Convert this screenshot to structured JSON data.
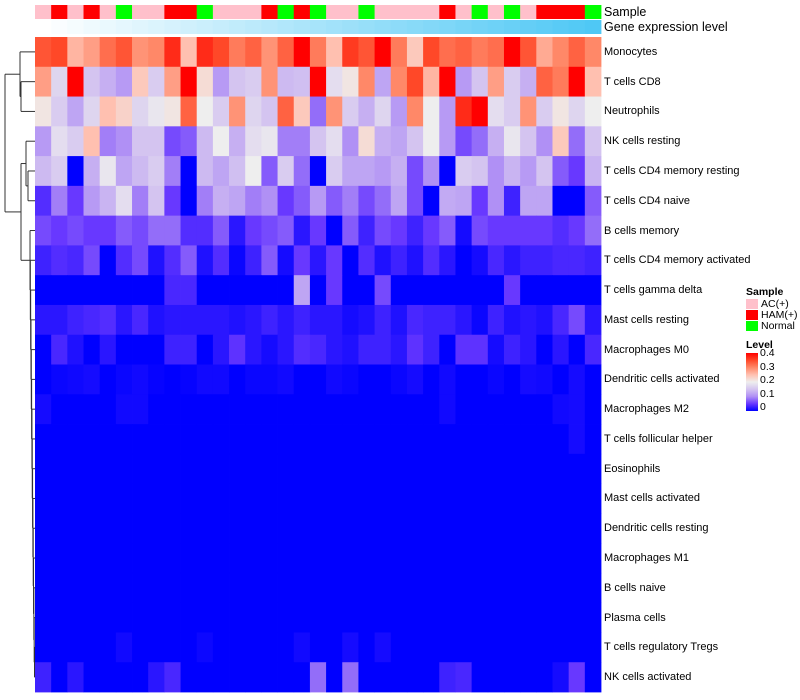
{
  "chart_data": {
    "type": "heatmap",
    "annotations": {
      "sample_label": "Sample",
      "gene_expression_label": "Gene expression level",
      "gene_expression_colors": [
        "#FFFFFF",
        "#4FC8F5"
      ]
    },
    "sample_groups": [
      "AC(+)",
      "HAM(+)",
      "AC(+)",
      "HAM(+)",
      "AC(+)",
      "Normal",
      "AC(+)",
      "AC(+)",
      "HAM(+)",
      "HAM(+)",
      "Normal",
      "AC(+)",
      "AC(+)",
      "AC(+)",
      "HAM(+)",
      "Normal",
      "HAM(+)",
      "Normal",
      "AC(+)",
      "AC(+)",
      "Normal",
      "AC(+)",
      "AC(+)",
      "AC(+)",
      "AC(+)",
      "HAM(+)",
      "AC(+)",
      "Normal",
      "AC(+)",
      "Normal",
      "AC(+)",
      "HAM(+)",
      "HAM(+)",
      "HAM(+)",
      "Normal"
    ],
    "rows": [
      "Monocytes",
      "T cells CD8",
      "Neutrophils",
      "NK cells resting",
      "T cells CD4 memory resting",
      "T cells CD4 naive",
      "B cells memory",
      "T cells CD4 memory activated",
      "T cells gamma delta",
      "Mast cells resting",
      "Macrophages M0",
      "Dendritic cells activated",
      "Macrophages M2",
      "T cells follicular helper",
      "Eosinophils",
      "Mast cells activated",
      "Dendritic cells resting",
      "Macrophages M1",
      "B cells naive",
      "Plasma cells",
      "T cells regulatory  Tregs",
      "NK cells activated"
    ],
    "values": [
      [
        0.34,
        0.35,
        0.26,
        0.28,
        0.32,
        0.34,
        0.29,
        0.3,
        0.37,
        0.25,
        0.37,
        0.35,
        0.31,
        0.33,
        0.29,
        0.33,
        0.4,
        0.31,
        0.25,
        0.36,
        0.34,
        0.4,
        0.31,
        0.24,
        0.35,
        0.32,
        0.33,
        0.31,
        0.32,
        0.4,
        0.34,
        0.27,
        0.3,
        0.33,
        0.3
      ],
      [
        0.28,
        0.17,
        0.4,
        0.15,
        0.13,
        0.11,
        0.24,
        0.16,
        0.28,
        0.4,
        0.22,
        0.11,
        0.15,
        0.16,
        0.29,
        0.14,
        0.145,
        0.4,
        0.18,
        0.21,
        0.3,
        0.12,
        0.3,
        0.35,
        0.26,
        0.4,
        0.11,
        0.15,
        0.28,
        0.16,
        0.13,
        0.33,
        0.31,
        0.4,
        0.25
      ],
      [
        0.21,
        0.16,
        0.12,
        0.17,
        0.25,
        0.23,
        0.17,
        0.19,
        0.21,
        0.33,
        0.2,
        0.16,
        0.29,
        0.17,
        0.15,
        0.33,
        0.24,
        0.08,
        0.29,
        0.16,
        0.13,
        0.17,
        0.11,
        0.3,
        0.2,
        0.11,
        0.37,
        0.4,
        0.18,
        0.16,
        0.29,
        0.16,
        0.21,
        0.17,
        0.2
      ],
      [
        0.11,
        0.18,
        0.16,
        0.25,
        0.09,
        0.1,
        0.15,
        0.15,
        0.06,
        0.07,
        0.14,
        0.2,
        0.13,
        0.18,
        0.19,
        0.09,
        0.09,
        0.15,
        0.18,
        0.1,
        0.22,
        0.13,
        0.12,
        0.15,
        0.2,
        0.11,
        0.06,
        0.08,
        0.13,
        0.19,
        0.15,
        0.1,
        0.24,
        0.08,
        0.15
      ],
      [
        0.14,
        0.16,
        0,
        0.13,
        0.19,
        0.12,
        0.14,
        0.16,
        0.09,
        0,
        0.14,
        0.12,
        0.145,
        0.2,
        0.07,
        0.16,
        0.08,
        0,
        0.16,
        0.12,
        0.12,
        0.11,
        0.13,
        0.06,
        0.1,
        0,
        0.16,
        0.15,
        0.1,
        0.135,
        0.11,
        0.15,
        0.07,
        0.05,
        0.135
      ],
      [
        0.04,
        0.09,
        0.05,
        0.11,
        0.135,
        0.18,
        0.09,
        0.15,
        0.05,
        0,
        0.09,
        0.13,
        0.12,
        0.09,
        0.1,
        0.05,
        0.07,
        0.11,
        0.07,
        0.09,
        0.06,
        0.08,
        0.12,
        0.06,
        0,
        0.125,
        0.12,
        0.05,
        0.1,
        0.03,
        0.12,
        0.12,
        0,
        0,
        0.07
      ],
      [
        0.06,
        0.05,
        0.06,
        0.05,
        0.05,
        0.07,
        0.06,
        0.08,
        0.08,
        0.04,
        0.04,
        0.07,
        0.02,
        0.05,
        0.06,
        0.07,
        0.02,
        0.05,
        0,
        0.07,
        0.03,
        0.06,
        0.05,
        0.03,
        0.05,
        0.07,
        0.01,
        0.06,
        0.05,
        0.05,
        0.05,
        0.05,
        0.04,
        0.05,
        0.08
      ],
      [
        0.03,
        0.04,
        0.035,
        0.06,
        0,
        0.04,
        0.06,
        0.015,
        0.04,
        0.07,
        0.015,
        0.04,
        0.005,
        0.03,
        0.07,
        0.01,
        0.05,
        0.02,
        0.05,
        0,
        0.04,
        0.015,
        0.03,
        0.015,
        0.04,
        0.02,
        0,
        0.01,
        0.035,
        0.02,
        0.03,
        0.03,
        0.035,
        0.035,
        0.03
      ],
      [
        0,
        0,
        0,
        0,
        0,
        0,
        0,
        0,
        0.035,
        0.035,
        0,
        0,
        0,
        0,
        0,
        0,
        0.12,
        0,
        0.05,
        0,
        0,
        0.06,
        0,
        0,
        0,
        0,
        0,
        0,
        0,
        0.05,
        0,
        0,
        0,
        0,
        0
      ],
      [
        0.02,
        0.02,
        0.03,
        0.035,
        0.04,
        0.02,
        0.035,
        0.015,
        0.02,
        0.02,
        0.02,
        0.02,
        0.015,
        0.02,
        0.03,
        0.02,
        0.03,
        0.02,
        0.02,
        0.01,
        0.015,
        0.03,
        0.015,
        0.035,
        0.03,
        0.03,
        0.02,
        0.005,
        0.03,
        0.015,
        0.02,
        0.015,
        0.035,
        0.06,
        0.02
      ],
      [
        0,
        0.035,
        0.015,
        0,
        0.02,
        0,
        0,
        0,
        0.03,
        0.03,
        0,
        0.02,
        0.045,
        0.02,
        0.01,
        0.02,
        0.04,
        0.035,
        0.02,
        0.015,
        0.03,
        0.03,
        0.02,
        0.045,
        0.03,
        0,
        0.045,
        0.045,
        0.01,
        0.03,
        0.02,
        0,
        0.02,
        0,
        0.035
      ],
      [
        0,
        0.005,
        0.007,
        0.01,
        0,
        0.005,
        0.008,
        0.003,
        0,
        0.003,
        0.008,
        0.008,
        0,
        0.005,
        0.005,
        0.008,
        0,
        0,
        0.008,
        0.005,
        0,
        0,
        0.005,
        0.01,
        0,
        0.008,
        0,
        0,
        0.005,
        0,
        0.01,
        0.008,
        0,
        0.01,
        0
      ],
      [
        0.01,
        0,
        0,
        0,
        0,
        0.008,
        0.008,
        0,
        0,
        0,
        0,
        0,
        0,
        0,
        0,
        0,
        0,
        0,
        0,
        0,
        0,
        0,
        0,
        0,
        0,
        0.008,
        0,
        0,
        0,
        0,
        0,
        0,
        0.008,
        0.01,
        0
      ],
      [
        0,
        0,
        0,
        0,
        0,
        0,
        0,
        0,
        0,
        0,
        0,
        0,
        0,
        0,
        0,
        0,
        0,
        0,
        0,
        0,
        0,
        0,
        0,
        0,
        0,
        0,
        0,
        0,
        0,
        0,
        0,
        0,
        0,
        0.01,
        0
      ],
      [
        0,
        0,
        0,
        0,
        0,
        0,
        0,
        0,
        0,
        0,
        0,
        0,
        0,
        0,
        0,
        0,
        0,
        0,
        0,
        0,
        0,
        0,
        0,
        0,
        0,
        0,
        0,
        0,
        0,
        0,
        0,
        0,
        0,
        0,
        0
      ],
      [
        0,
        0,
        0,
        0,
        0,
        0,
        0,
        0,
        0,
        0,
        0,
        0,
        0,
        0,
        0,
        0,
        0,
        0,
        0,
        0,
        0,
        0,
        0,
        0,
        0,
        0,
        0,
        0,
        0,
        0,
        0,
        0,
        0,
        0,
        0
      ],
      [
        0,
        0,
        0,
        0,
        0,
        0,
        0,
        0,
        0,
        0,
        0,
        0,
        0,
        0,
        0,
        0,
        0,
        0,
        0,
        0,
        0,
        0,
        0,
        0,
        0,
        0,
        0,
        0,
        0,
        0,
        0,
        0,
        0,
        0,
        0
      ],
      [
        0,
        0,
        0,
        0,
        0,
        0,
        0,
        0,
        0,
        0,
        0,
        0,
        0,
        0,
        0,
        0,
        0,
        0,
        0,
        0,
        0,
        0,
        0,
        0,
        0,
        0,
        0,
        0,
        0,
        0,
        0,
        0,
        0,
        0,
        0
      ],
      [
        0,
        0,
        0,
        0,
        0,
        0,
        0,
        0,
        0,
        0,
        0,
        0,
        0,
        0,
        0,
        0,
        0,
        0,
        0,
        0,
        0,
        0,
        0,
        0,
        0,
        0,
        0,
        0,
        0,
        0,
        0,
        0,
        0,
        0,
        0
      ],
      [
        0,
        0,
        0,
        0,
        0,
        0,
        0,
        0,
        0,
        0,
        0,
        0,
        0,
        0,
        0,
        0,
        0,
        0,
        0,
        0,
        0,
        0,
        0,
        0,
        0,
        0,
        0,
        0,
        0,
        0,
        0,
        0,
        0,
        0,
        0
      ],
      [
        0,
        0,
        0,
        0,
        0,
        0.008,
        0,
        0,
        0,
        0,
        0.006,
        0,
        0,
        0,
        0,
        0,
        0.008,
        0,
        0,
        0.01,
        0,
        0.01,
        0,
        0,
        0,
        0,
        0,
        0,
        0,
        0,
        0,
        0,
        0,
        0,
        0
      ],
      [
        0.03,
        0,
        0.02,
        0,
        0,
        0,
        0,
        0.02,
        0.035,
        0,
        0,
        0,
        0,
        0,
        0,
        0,
        0,
        0.08,
        0,
        0.08,
        0,
        0,
        0,
        0,
        0,
        0.03,
        0.035,
        0,
        0,
        0,
        0,
        0,
        0.01,
        0.05,
        0
      ]
    ],
    "color_scale": {
      "range": [
        0,
        0.4
      ],
      "stops": [
        {
          "v": 0,
          "c": "#0000FF"
        },
        {
          "v": 0.05,
          "c": "#6838FF"
        },
        {
          "v": 0.1,
          "c": "#B090F5"
        },
        {
          "v": 0.15,
          "c": "#D4C4F0"
        },
        {
          "v": 0.2,
          "c": "#EEEEEE"
        },
        {
          "v": 0.25,
          "c": "#FFC0B0"
        },
        {
          "v": 0.3,
          "c": "#FF8868"
        },
        {
          "v": 0.35,
          "c": "#FF4828"
        },
        {
          "v": 0.4,
          "c": "#FF0000"
        }
      ]
    },
    "legend": {
      "sample_title": "Sample",
      "sample_items": [
        {
          "label": "AC(+)",
          "color": "#FFC0CB"
        },
        {
          "label": "HAM(+)",
          "color": "#FF0000"
        },
        {
          "label": "Normal",
          "color": "#00FF00"
        }
      ],
      "level_title": "Level",
      "level_ticks": [
        "0.4",
        "0.3",
        "0.2",
        "0.1",
        "0"
      ],
      "placement": "right"
    }
  }
}
